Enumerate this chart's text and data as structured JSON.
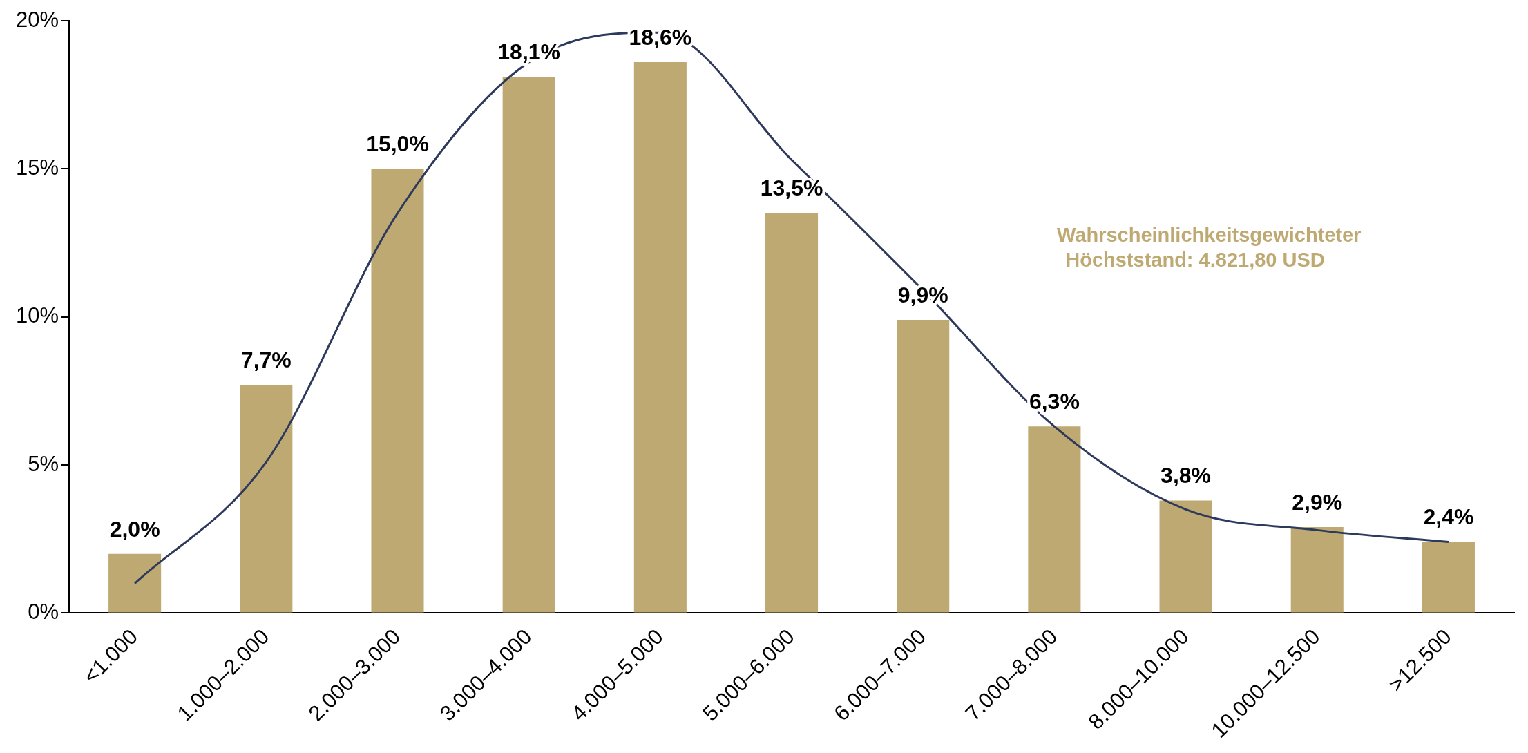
{
  "chart_data": {
    "type": "bar",
    "categories": [
      "<1.000",
      "1.000–2.000",
      "2.000–3.000",
      "3.000–4.000",
      "4.000–5.000",
      "5.000–6.000",
      "6.000–7.000",
      "7.000–8.000",
      "8.000–10.000",
      "10.000–12.500",
      ">12.500"
    ],
    "series": [
      {
        "color": "#bfa972",
        "values": [
          2.0,
          7.7,
          15.0,
          18.1,
          18.6,
          13.5,
          9.9,
          6.3,
          3.8,
          2.9,
          2.4
        ],
        "value_labels": [
          "2,0%",
          "7,7%",
          "15,0%",
          "18,1%",
          "18,6%",
          "13,5%",
          "9,9%",
          "6,3%",
          "3,8%",
          "2,9%",
          "2,4%"
        ]
      },
      {
        "type": "line",
        "color": "#2e3a5c",
        "marker": "none",
        "values": [
          1.0,
          5.1,
          13.5,
          18.6,
          19.6,
          15.3,
          10.9,
          6.3,
          3.5,
          2.8,
          2.4
        ]
      }
    ],
    "ylim": [
      0,
      20
    ],
    "yticks": [
      {
        "value": 0,
        "label": "0%"
      },
      {
        "value": 5,
        "label": "5%"
      },
      {
        "value": 10,
        "label": "10%"
      },
      {
        "value": 15,
        "label": "15%"
      },
      {
        "value": 20,
        "label": "20%"
      }
    ],
    "grid": false,
    "legend": false,
    "annotations": [
      "Wahrscheinlichkeitsgewichteter Höchststand: 4.821,80 USD"
    ]
  }
}
